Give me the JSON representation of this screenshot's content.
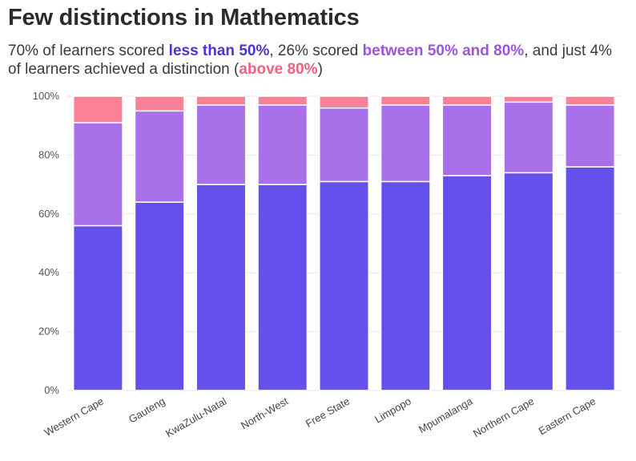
{
  "title": "Few distinctions in Mathematics",
  "subtitle": {
    "p1": "70% of learners scored ",
    "h1": "less than 50%",
    "p2": ", 26% scored ",
    "h2": "between 50% and 80%",
    "p3": ", and just 4% of learners achieved a distinction (",
    "h3": "above 80%",
    "p4": ")"
  },
  "colors": {
    "less_than_50": "#6450eb",
    "between_50_80": "#a871ea",
    "above_80": "#fb8199",
    "grid": "#e6e6e6"
  },
  "chart_data": {
    "type": "bar",
    "stacked": true,
    "categories": [
      "Western Cape",
      "Gauteng",
      "KwaZulu-Natal",
      "North-West",
      "Free State",
      "Limpopo",
      "Mpumalanga",
      "Northern Cape",
      "Eastern Cape"
    ],
    "series": [
      {
        "name": "less than 50%",
        "values": [
          56,
          64,
          70,
          70,
          71,
          71,
          73,
          74,
          76
        ]
      },
      {
        "name": "between 50% and 80%",
        "values": [
          35,
          31,
          27,
          27,
          25,
          26,
          24,
          24,
          21
        ]
      },
      {
        "name": "above 80%",
        "values": [
          9,
          5,
          3,
          3,
          4,
          3,
          3,
          2,
          3
        ]
      }
    ],
    "ylim": [
      0,
      100
    ],
    "yticks": [
      "0%",
      "20%",
      "40%",
      "60%",
      "80%",
      "100%"
    ],
    "ytick_values": [
      0,
      20,
      40,
      60,
      80,
      100
    ],
    "grid": true
  }
}
